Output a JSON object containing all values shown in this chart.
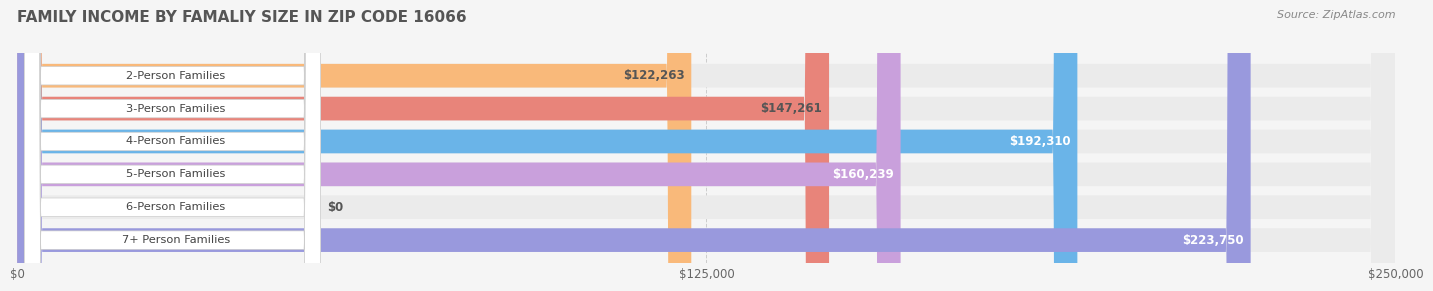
{
  "title": "FAMILY INCOME BY FAMALIY SIZE IN ZIP CODE 16066",
  "source": "Source: ZipAtlas.com",
  "categories": [
    "2-Person Families",
    "3-Person Families",
    "4-Person Families",
    "5-Person Families",
    "6-Person Families",
    "7+ Person Families"
  ],
  "values": [
    122263,
    147261,
    192310,
    160239,
    0,
    223750
  ],
  "bar_colors": [
    "#f9b97a",
    "#e8847a",
    "#6ab4e8",
    "#c9a0dc",
    "#6ecfcc",
    "#9999dd"
  ],
  "label_colors": [
    "#555555",
    "#555555",
    "#ffffff",
    "#ffffff",
    "#555555",
    "#ffffff"
  ],
  "x_max": 250000,
  "x_ticks": [
    0,
    125000,
    250000
  ],
  "x_tick_labels": [
    "$0",
    "$125,000",
    "$250,000"
  ],
  "background_color": "#f5f5f5",
  "bar_bg_color": "#ebebeb",
  "title_color": "#555555",
  "source_color": "#888888",
  "label_fontsize": 9,
  "title_fontsize": 11,
  "value_labels": [
    "$122,263",
    "$147,261",
    "$192,310",
    "$160,239",
    "$0",
    "$223,750"
  ]
}
